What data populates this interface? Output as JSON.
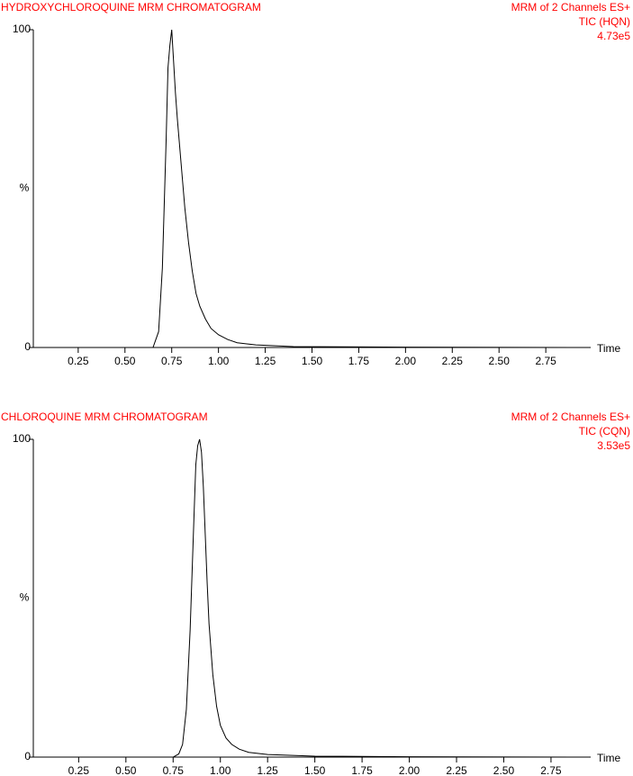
{
  "chart_data": [
    {
      "type": "line",
      "title": "HYDROXYCHLOROQUINE MRM CHROMATOGRAM",
      "annotations": [
        "MRM of 2 Channels ES+",
        "TIC (HQN)",
        "4.73e5"
      ],
      "text_color": "#ff0000",
      "color": "#000000",
      "ylabel": "%",
      "xlabel": "Time",
      "x": [
        0.01,
        0.5,
        0.65,
        0.68,
        0.7,
        0.72,
        0.73,
        0.74,
        0.75,
        0.76,
        0.77,
        0.78,
        0.8,
        0.82,
        0.84,
        0.86,
        0.88,
        0.9,
        0.93,
        0.96,
        1.0,
        1.05,
        1.1,
        1.2,
        1.4,
        2.0,
        2.99
      ],
      "values": [
        0,
        0,
        0,
        5,
        25,
        65,
        88,
        95,
        100,
        90,
        80,
        72,
        58,
        44,
        33,
        24,
        17,
        13,
        9,
        6,
        4,
        2.5,
        1.5,
        0.8,
        0.3,
        0.1,
        0
      ],
      "xlim": [
        0.01,
        2.99
      ],
      "ylim": [
        0,
        100
      ],
      "xticks": [
        0.25,
        {
          "value": 0.5,
          "label": "0.50"
        },
        0.75,
        {
          "value": 1,
          "label": "1.00"
        },
        1.25,
        {
          "value": 1.5,
          "label": "1.50"
        },
        1.75,
        {
          "value": 2,
          "label": "2.00"
        },
        2.25,
        {
          "value": 2.5,
          "label": "2.50"
        },
        2.75
      ],
      "yticks": [
        0,
        100
      ]
    },
    {
      "type": "line",
      "title": "CHLOROQUINE MRM CHROMATOGRAM",
      "annotations": [
        "MRM of 2 Channels ES+",
        "TIC (CQN)",
        "3.53e5"
      ],
      "text_color": "#ff0000",
      "color": "#000000",
      "ylabel": "%",
      "xlabel": "Time",
      "x": [
        0.01,
        0.6,
        0.75,
        0.78,
        0.8,
        0.82,
        0.84,
        0.86,
        0.87,
        0.88,
        0.89,
        0.9,
        0.91,
        0.92,
        0.93,
        0.94,
        0.96,
        0.98,
        1.0,
        1.03,
        1.06,
        1.1,
        1.15,
        1.25,
        1.5,
        2.0,
        2.96
      ],
      "values": [
        0,
        0,
        0,
        1,
        4,
        15,
        40,
        75,
        92,
        98,
        100,
        96,
        85,
        70,
        55,
        42,
        26,
        16,
        10,
        6,
        4,
        2.5,
        1.5,
        0.8,
        0.3,
        0.1,
        0
      ],
      "xlim": [
        0.01,
        2.96
      ],
      "ylim": [
        0,
        100
      ],
      "xticks": [
        0.25,
        {
          "value": 0.5,
          "label": "0.50"
        },
        0.75,
        {
          "value": 1,
          "label": "1.00"
        },
        1.25,
        {
          "value": 1.5,
          "label": "1.50"
        },
        1.75,
        {
          "value": 2,
          "label": "2.00"
        },
        2.25,
        {
          "value": 2.5,
          "label": "2.50"
        },
        2.75
      ],
      "yticks": [
        0,
        100
      ]
    }
  ]
}
